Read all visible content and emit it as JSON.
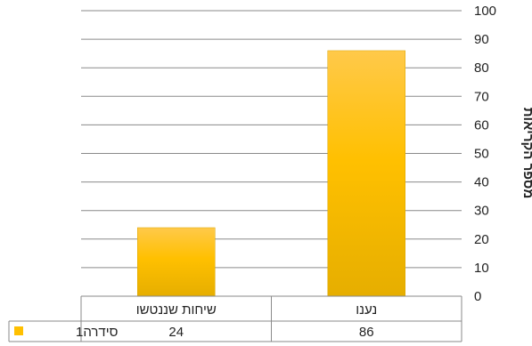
{
  "chart_data": {
    "type": "bar",
    "categories": [
      "נענו",
      "שיחות שננטשו"
    ],
    "series": [
      {
        "name": "סידרה1",
        "values": [
          86,
          24
        ],
        "color": "#FFC000"
      }
    ],
    "ylabel": "מספר הקריאות",
    "ylim": [
      0,
      100
    ],
    "yticks": [
      0,
      10,
      20,
      30,
      40,
      50,
      60,
      70,
      80,
      90,
      100
    ],
    "grid": true,
    "y_axis_side": "right",
    "data_table": true,
    "legend_placement": "data-table-left"
  }
}
